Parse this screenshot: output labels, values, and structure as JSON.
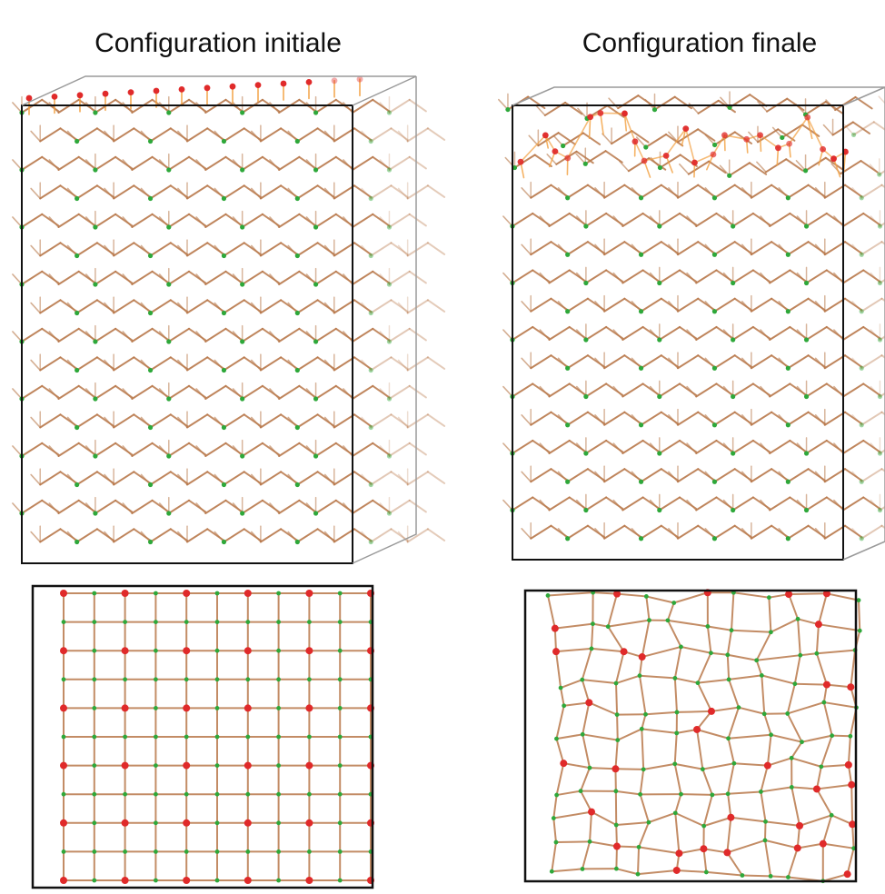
{
  "figure": {
    "left_title": "Configuration initiale",
    "right_title": "Configuration finale"
  },
  "colors": {
    "bond": "#b8784a",
    "bond_hot": "#f2a040",
    "atom_bulk": "#2ea83a",
    "atom_surface": "#e02a2a",
    "frame": "#111111",
    "frame_light": "#9a9a9a"
  },
  "lattice": {
    "top_grid_rows": 11,
    "top_grid_cols": 11,
    "initial_state": "perfect",
    "final_state": "reconstructed surface"
  }
}
